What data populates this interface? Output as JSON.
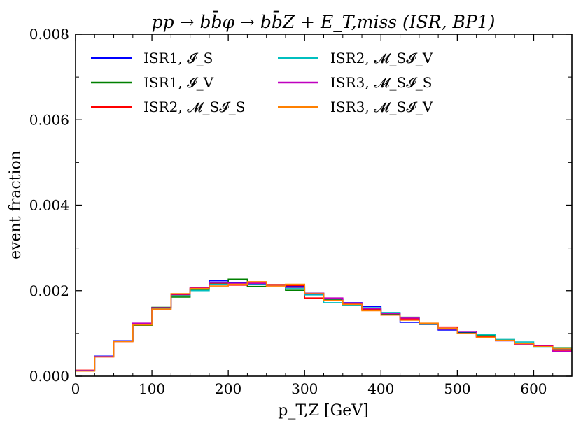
{
  "chart_data": {
    "type": "line",
    "drawstyle": "steps",
    "title": "pp → bb̄φ → bb̄Z + E_T,miss (ISR, BP1)",
    "xlabel": "p_T,Z [GeV]",
    "ylabel": "event fraction",
    "xlim": [
      0,
      650
    ],
    "ylim": [
      0,
      0.008
    ],
    "xticks": [
      "0",
      "100",
      "200",
      "300",
      "400",
      "500",
      "600"
    ],
    "yticks": [
      "0.000",
      "0.002",
      "0.004",
      "0.006",
      "0.008"
    ],
    "bin_edges": [
      0,
      25,
      50,
      75,
      100,
      125,
      150,
      175,
      200,
      225,
      250,
      275,
      300,
      325,
      350,
      375,
      400,
      425,
      450,
      475,
      500,
      525,
      550,
      575,
      600,
      625,
      650
    ],
    "legend_position": "top-left",
    "series": [
      {
        "name": "ISR1, 𝓘_S",
        "color": "#0000ff",
        "values": [
          0.00013,
          0.00047,
          0.00083,
          0.0012,
          0.0016,
          0.0019,
          0.00205,
          0.00223,
          0.00218,
          0.00215,
          0.00213,
          0.0021,
          0.00192,
          0.0018,
          0.00172,
          0.00163,
          0.00145,
          0.00126,
          0.00122,
          0.00108,
          0.00102,
          0.00093,
          0.00083,
          0.00076,
          0.00069,
          0.00063
        ]
      },
      {
        "name": "ISR1, 𝓘_V",
        "color": "#008000",
        "values": [
          0.00012,
          0.00046,
          0.00082,
          0.00119,
          0.00161,
          0.00185,
          0.00203,
          0.00217,
          0.00227,
          0.0021,
          0.00214,
          0.00201,
          0.00194,
          0.0018,
          0.00168,
          0.00155,
          0.00146,
          0.00138,
          0.00122,
          0.0011,
          0.00101,
          0.00095,
          0.00085,
          0.00075,
          0.0007,
          0.00065
        ]
      },
      {
        "name": "ISR2, 𝓜_S𝓘_S",
        "color": "#ff0000",
        "values": [
          0.00014,
          0.00045,
          0.00081,
          0.00122,
          0.00157,
          0.0019,
          0.00206,
          0.00216,
          0.00213,
          0.0022,
          0.00214,
          0.00212,
          0.00183,
          0.00182,
          0.0017,
          0.00157,
          0.00143,
          0.00134,
          0.00121,
          0.00115,
          0.001,
          0.00092,
          0.00084,
          0.00074,
          0.00071,
          0.00059
        ]
      },
      {
        "name": "ISR2, 𝓜_S𝓘_V",
        "color": "#00bfbf",
        "values": [
          0.00013,
          0.00046,
          0.00082,
          0.00121,
          0.00158,
          0.00188,
          0.002,
          0.00215,
          0.00216,
          0.00216,
          0.00212,
          0.00206,
          0.0019,
          0.00172,
          0.00166,
          0.0016,
          0.00149,
          0.00137,
          0.00121,
          0.0011,
          0.001,
          0.00097,
          0.00086,
          0.0008,
          0.00068,
          0.00064
        ]
      },
      {
        "name": "ISR3, 𝓜_S𝓘_S",
        "color": "#bf00bf",
        "values": [
          0.00013,
          0.00046,
          0.00082,
          0.00124,
          0.0016,
          0.00192,
          0.00208,
          0.00219,
          0.00217,
          0.00217,
          0.00213,
          0.00208,
          0.00194,
          0.00183,
          0.00171,
          0.00158,
          0.00147,
          0.00136,
          0.00122,
          0.0011,
          0.00105,
          0.0009,
          0.00083,
          0.00075,
          0.0007,
          0.00058
        ]
      },
      {
        "name": "ISR3, 𝓜_S𝓘_V",
        "color": "#ff8000",
        "values": [
          0.00012,
          0.00045,
          0.00081,
          0.0012,
          0.00157,
          0.00193,
          0.00205,
          0.00211,
          0.00215,
          0.00221,
          0.00211,
          0.00215,
          0.00193,
          0.00177,
          0.00168,
          0.00153,
          0.00143,
          0.00131,
          0.00124,
          0.00112,
          0.001,
          0.00091,
          0.00084,
          0.00076,
          0.00069,
          0.00064
        ]
      }
    ]
  }
}
